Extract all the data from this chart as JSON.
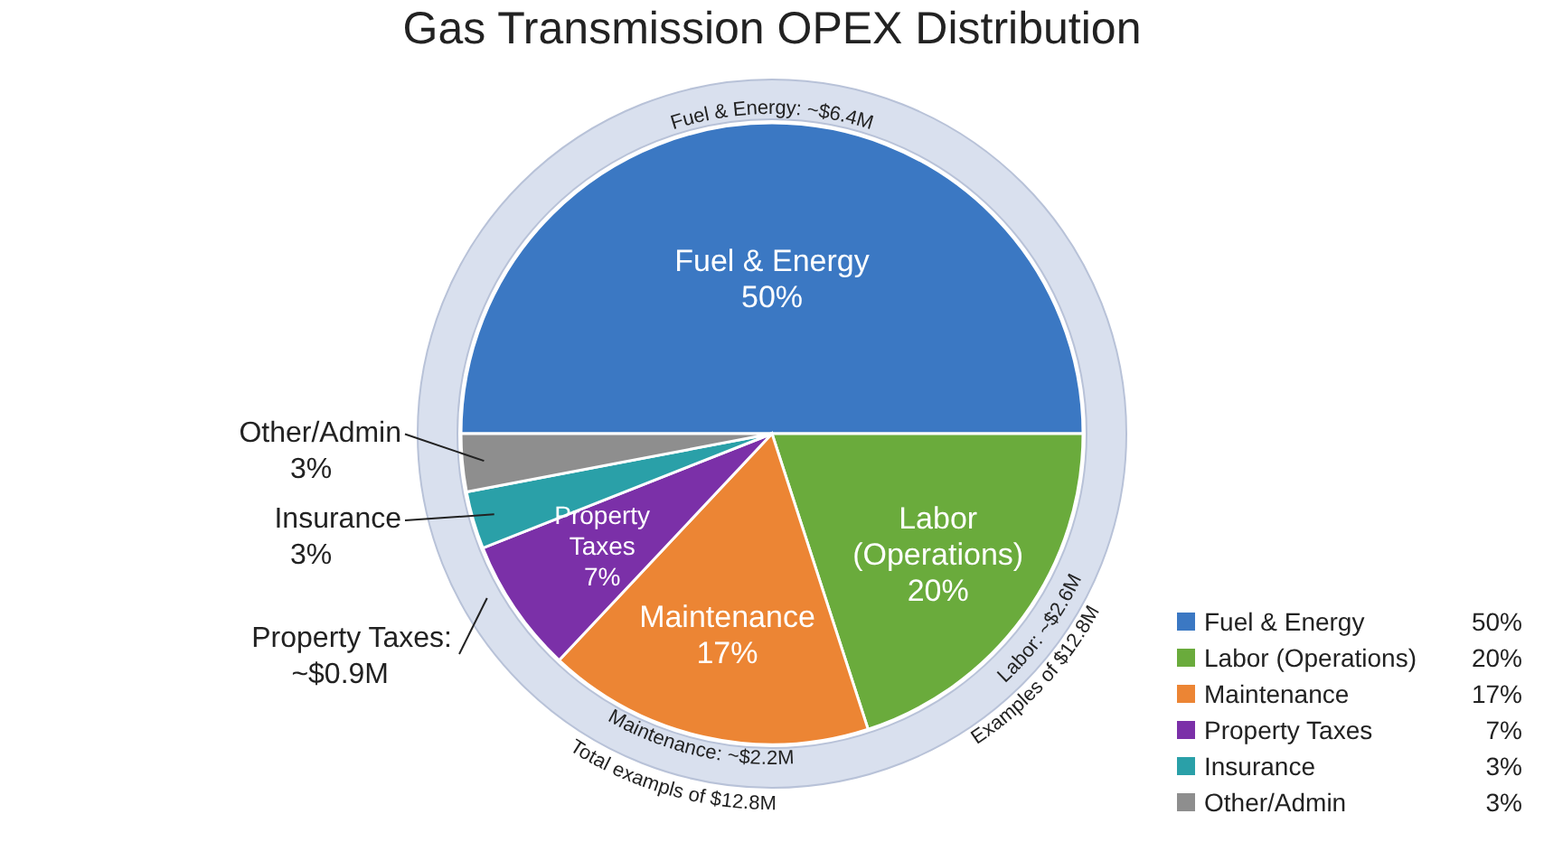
{
  "chart_data": {
    "type": "pie",
    "title": "Gas Transmission OPEX Distribution",
    "categories": [
      "Fuel & Energy",
      "Labor (Operations)",
      "Maintenance",
      "Property Taxes",
      "Insurance",
      "Other/Admin"
    ],
    "values": [
      50,
      20,
      17,
      7,
      3,
      3
    ],
    "value_labels": [
      "50%",
      "20%",
      "17%",
      "7%",
      "3%",
      "3%"
    ],
    "colors": [
      "#3b78c3",
      "#6aab3c",
      "#ec8534",
      "#7b30a8",
      "#2aa0a8",
      "#8e8e8e"
    ],
    "legend": "bottom right",
    "annotations": [
      "Fuel & Energy: ~$6.4M",
      "Labor: ~$2.6M",
      "Examples of $12.8M",
      "Maintenance: ~$2.2M",
      "Total exampls of $12.8M",
      "Property Taxes: ~$0.9M"
    ]
  }
}
